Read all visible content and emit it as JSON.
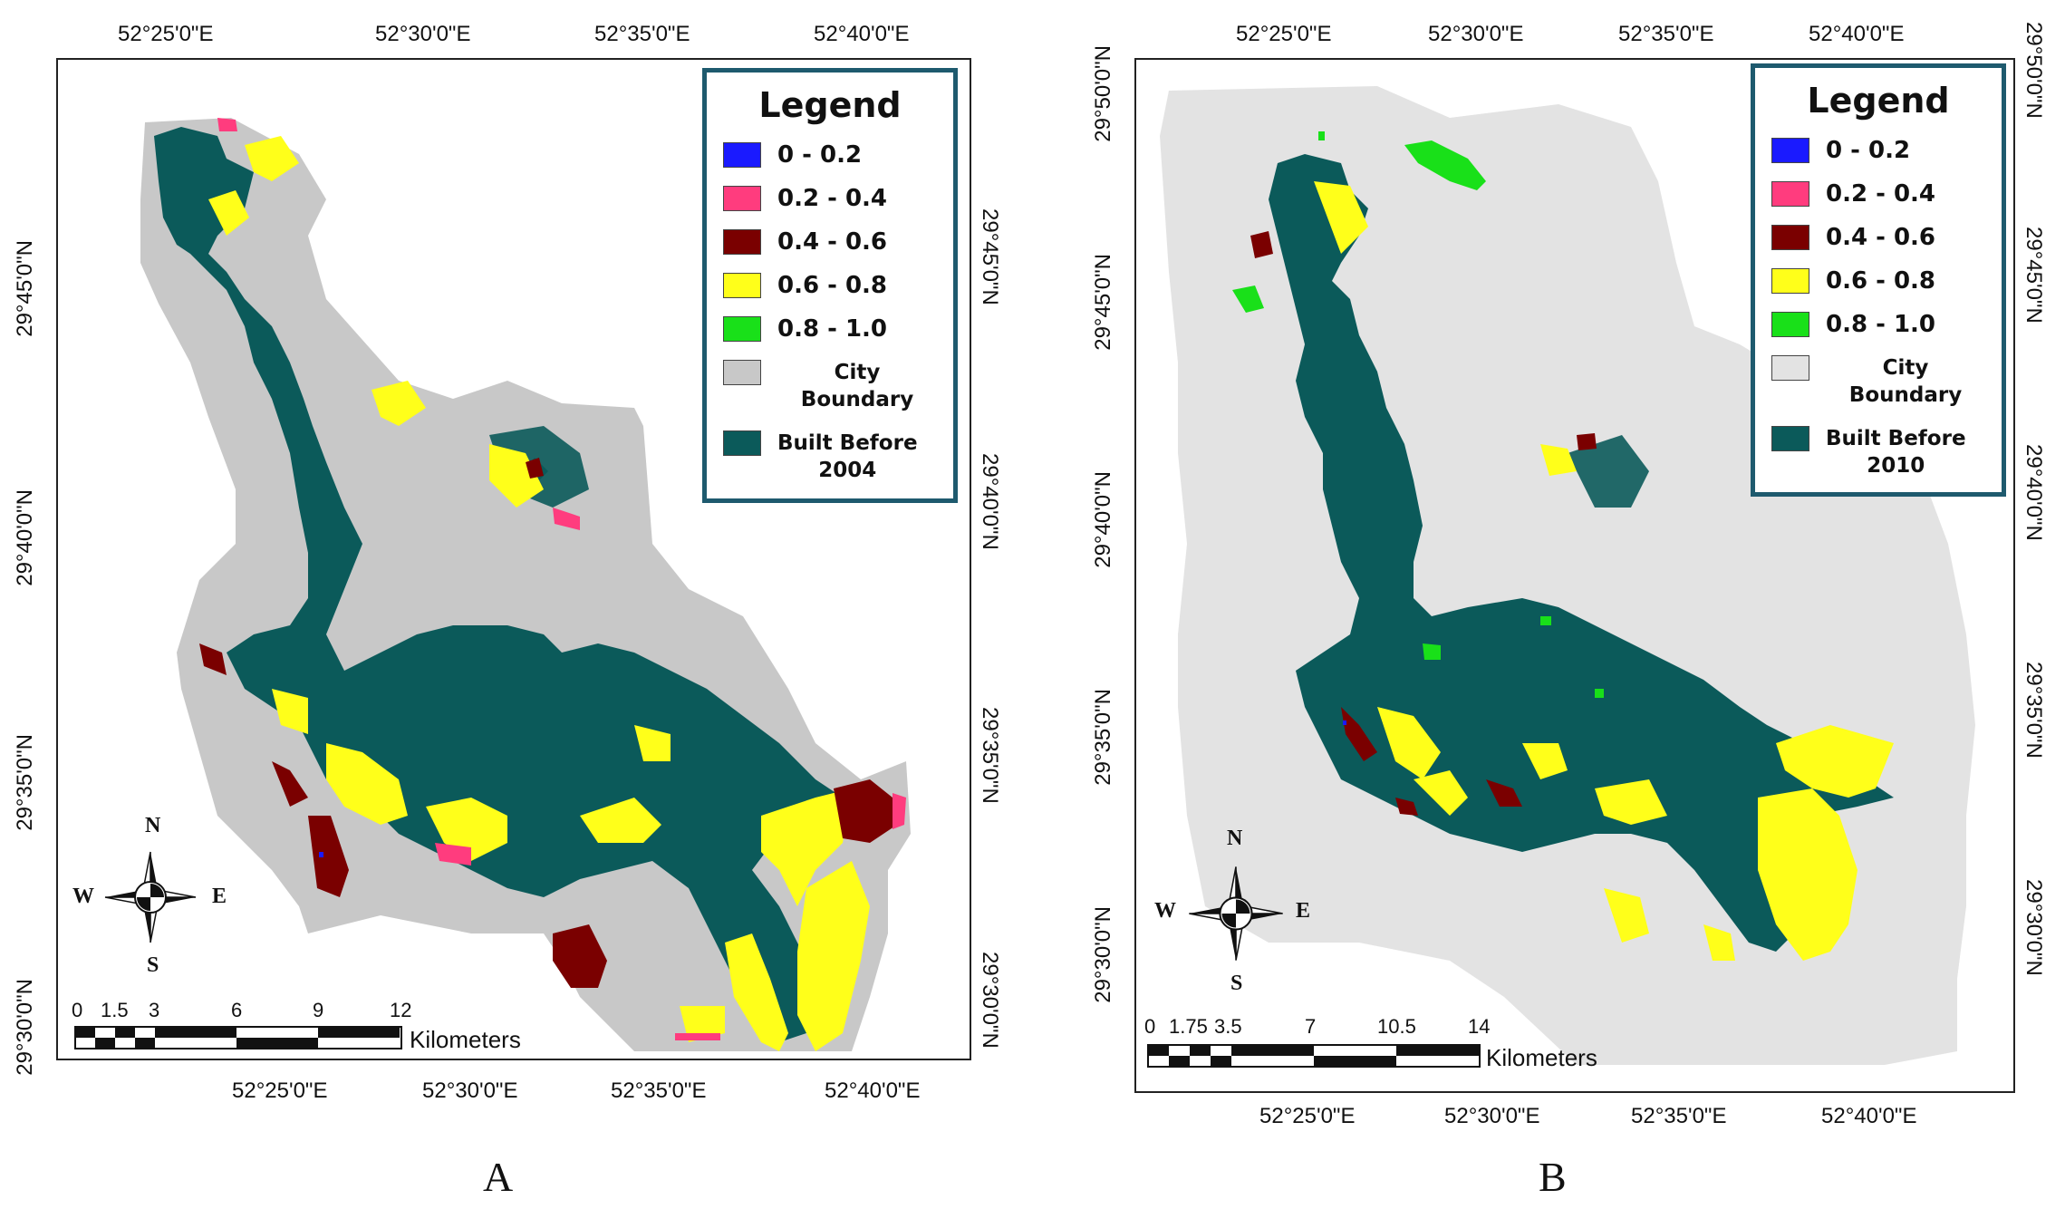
{
  "colors": {
    "class_0_02": "#1a1aff",
    "class_02_04": "#ff3c7e",
    "class_04_06": "#7a0000",
    "class_06_08": "#ffff1a",
    "class_08_10": "#19e019",
    "city_boundary_a": "#c8c8c8",
    "city_boundary_b": "#e3e3e3",
    "built": "#0b5a5a",
    "legend_border": "#1e5a6e"
  },
  "panel_a": {
    "letter": "A",
    "lon_labels_top": [
      "52°25'0\"E",
      "52°30'0\"E",
      "52°35'0\"E",
      "52°40'0\"E"
    ],
    "lon_labels_bottom": [
      "52°25'0\"E",
      "52°30'0\"E",
      "52°35'0\"E",
      "52°40'0\"E"
    ],
    "lat_labels_left": [
      "29°45'0\"N",
      "29°40'0\"N",
      "29°35'0\"N",
      "29°30'0\"N"
    ],
    "lat_labels_right": [
      "29°45'0\"N",
      "29°40'0\"N",
      "29°35'0\"N",
      "29°30'0\"N"
    ],
    "legend": {
      "title": "Legend",
      "items": [
        {
          "label": "0 - 0.2",
          "color": "#1a1aff"
        },
        {
          "label": "0.2 - 0.4",
          "color": "#ff3c7e"
        },
        {
          "label": "0.4 - 0.6",
          "color": "#7a0000"
        },
        {
          "label": "0.6 - 0.8",
          "color": "#ffff1a"
        },
        {
          "label": "0.8 - 1.0",
          "color": "#19e019"
        },
        {
          "label": "City Boundary",
          "color": "#c8c8c8"
        },
        {
          "label": "Built Before",
          "label2": "2004",
          "color": "#0b5a5a"
        }
      ]
    },
    "scale": {
      "ticks": [
        "0",
        "1.5",
        "3",
        "6",
        "9",
        "12"
      ],
      "unit": "Kilometers"
    },
    "compass": {
      "n": "N",
      "s": "S",
      "e": "E",
      "w": "W"
    }
  },
  "panel_b": {
    "letter": "B",
    "lon_labels_top": [
      "52°25'0\"E",
      "52°30'0\"E",
      "52°35'0\"E",
      "52°40'0\"E"
    ],
    "lon_labels_bottom": [
      "52°25'0\"E",
      "52°30'0\"E",
      "52°35'0\"E",
      "52°40'0\"E"
    ],
    "lat_labels_left": [
      "29°50'0\"N",
      "29°45'0\"N",
      "29°40'0\"N",
      "29°35'0\"N",
      "29°30'0\"N"
    ],
    "lat_labels_right": [
      "29°50'0\"N",
      "29°45'0\"N",
      "29°40'0\"N",
      "29°35'0\"N",
      "29°30'0\"N"
    ],
    "legend": {
      "title": "Legend",
      "items": [
        {
          "label": "0 - 0.2",
          "color": "#1a1aff"
        },
        {
          "label": "0.2 - 0.4",
          "color": "#ff3c7e"
        },
        {
          "label": "0.4 - 0.6",
          "color": "#7a0000"
        },
        {
          "label": "0.6 - 0.8",
          "color": "#ffff1a"
        },
        {
          "label": "0.8 - 1.0",
          "color": "#19e019"
        },
        {
          "label": "City Boundary",
          "color": "#e3e3e3"
        },
        {
          "label": "Built Before",
          "label2": "2010",
          "color": "#0b5a5a"
        }
      ]
    },
    "scale": {
      "ticks": [
        "0",
        "1.75",
        "3.5",
        "7",
        "10.5",
        "14"
      ],
      "unit": "Kilometers"
    },
    "compass": {
      "n": "N",
      "s": "S",
      "e": "E",
      "w": "W"
    }
  }
}
